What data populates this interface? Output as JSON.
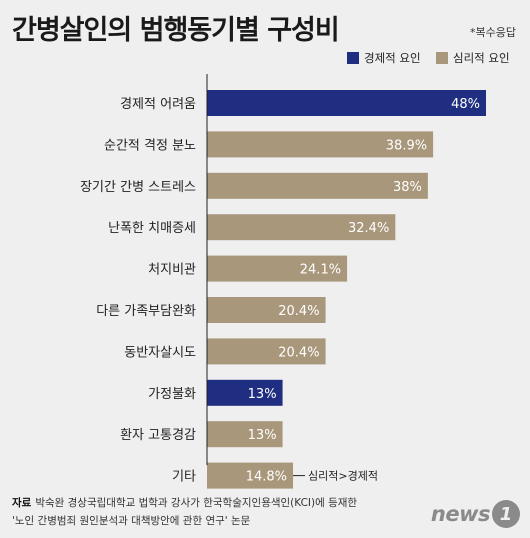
{
  "title": "간병살인의 범행동기별 구성비",
  "note": "*복수응답",
  "footer": {
    "source_label": "자료",
    "line1": "박숙완 경상국립대학교 법학과 강사가 한국학술지인용색인(KCI)에 등재한",
    "line2": "'노인 간병범죄 원인분석과 대책방안에 관한 연구' 논문"
  },
  "logo": {
    "word": "news",
    "mark": "1"
  },
  "colors": {
    "economic": "#1f2e80",
    "psychological": "#a8977a",
    "background": "#efefef"
  },
  "chart_data": {
    "type": "bar",
    "orientation": "horizontal",
    "xlim": [
      0,
      50
    ],
    "legend": [
      {
        "key": "economic",
        "label": "경제적 요인"
      },
      {
        "key": "psychological",
        "label": "심리적 요인"
      }
    ],
    "categories": [
      "경제적 어려움",
      "순간적 격정 분노",
      "장기간 간병 스트레스",
      "난폭한 치매증세",
      "처지비관",
      "다른 가족부담완화",
      "동반자살시도",
      "가정불화",
      "환자 고통경감",
      "기타"
    ],
    "values": [
      48,
      38.9,
      38,
      32.4,
      24.1,
      20.4,
      20.4,
      13,
      13,
      14.8
    ],
    "value_labels": [
      "48%",
      "38.9%",
      "38%",
      "32.4%",
      "24.1%",
      "20.4%",
      "20.4%",
      "13%",
      "13%",
      "14.8%"
    ],
    "groups": [
      "economic",
      "psychological",
      "psychological",
      "psychological",
      "psychological",
      "psychological",
      "psychological",
      "economic",
      "psychological",
      "psychological"
    ],
    "annotation": {
      "category": "기타",
      "text": "심리적>경제적"
    }
  }
}
